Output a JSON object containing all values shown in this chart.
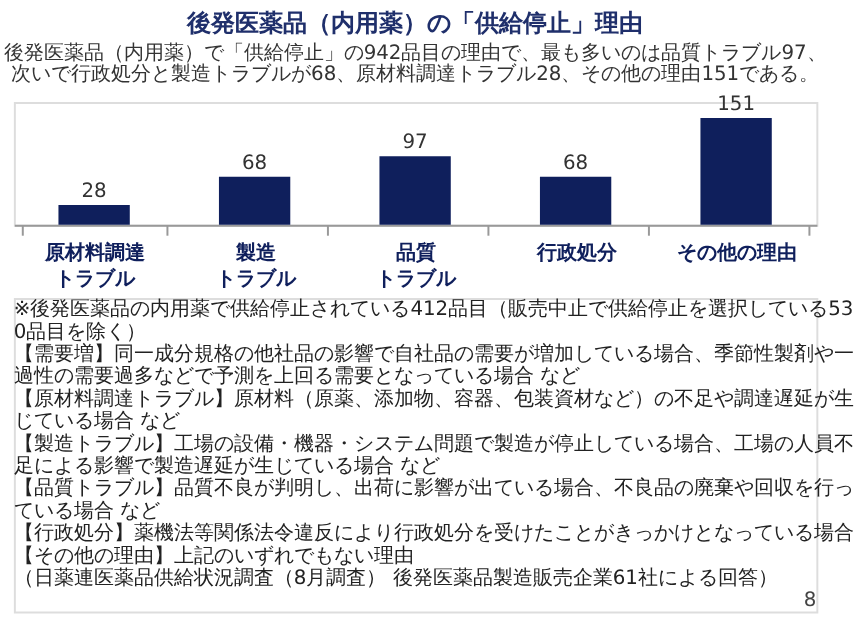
{
  "chart_data": {
    "type": "bar",
    "title": "後発医薬品（内用薬）の「供給停止」理由",
    "subtitle": "後発医薬品（内用薬）で「供給停止」の942品目の理由で、最も多いのは品質トラブル97、次いで行政処分と製造トラブルが68、原材料調達トラブル28、その他の理由151である。",
    "categories": [
      "原材料調達トラブル",
      "製造トラブル",
      "品質トラブル",
      "行政処分",
      "その他の理由"
    ],
    "values": [
      28,
      68,
      97,
      68,
      151
    ],
    "color": "#0f1f5c",
    "data_labels": true,
    "grid": false,
    "tick_labels": "x",
    "annotations": [
      "※後発医薬品の内用薬で供給停止されている412品目（販売中止で供給停止を選択している530品目を除く）",
      "【需要増】同一成分規格の他社品の影響で自社品の需要が増加している場合、季節性製剤や一過性の需要過多などで予測を上回る需要となっている場合 など",
      "【原材料調達トラブル】原材料（原薬、添加物、容器、包装資材など）の不足や調達遅延が生じている場合 など",
      "【製造トラブル】工場の設備・機器・システム問題で製造が停止している場合、工場の人員不足による影響で製造遅延が生じている場合 など",
      "【品質トラブル】品質不良が判明し、出荷に影響が出ている場合、不良品の廃棄や回収を行っている場合 など",
      "【行政処分】薬機法等関係法令違反により行政処分を受けたことがきっかけとなっている場合",
      "【その他の理由】上記のいずれでもない理由",
      "（日薬連医薬品供給状況調査（8月調査） 後発医薬品製造販売企業61社による回答）",
      "8"
    ]
  }
}
